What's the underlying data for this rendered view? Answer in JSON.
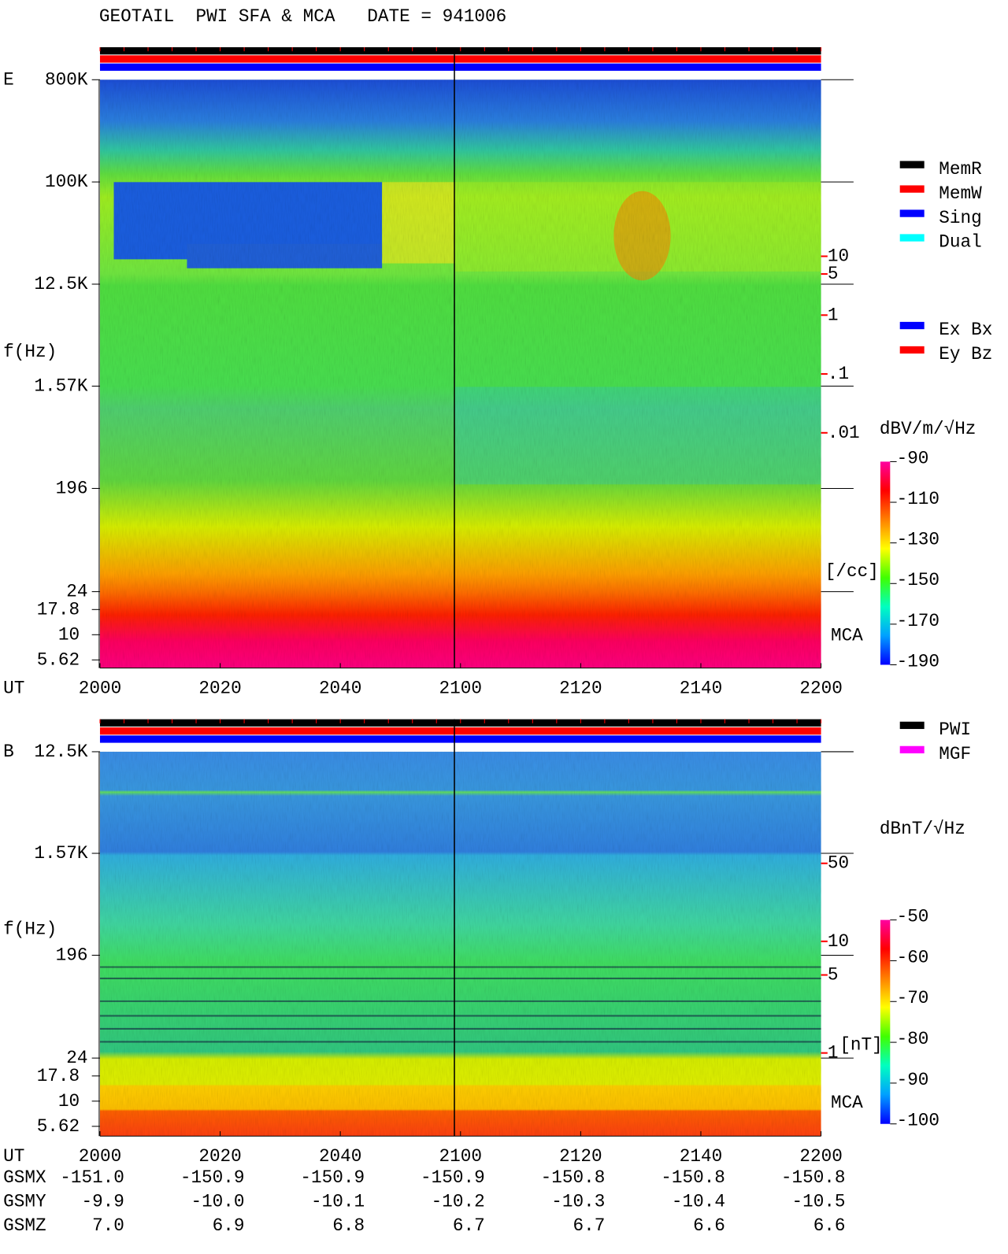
{
  "title": "GEOTAIL  PWI SFA & MCA   DATE = 941006",
  "chart_data": [
    {
      "type": "spectrogram",
      "panel_label": "E",
      "y_label": "f(Hz)",
      "x_label": "UT",
      "log_y": true,
      "x_categories": [
        "2000",
        "2020",
        "2040",
        "2100",
        "2120",
        "2140",
        "2200"
      ],
      "ylim": [
        24,
        800000
      ],
      "yticks": [
        {
          "value": 800000,
          "label": "800K"
        },
        {
          "value": 100000,
          "label": "100K"
        },
        {
          "value": 12500,
          "label": "12.5K"
        },
        {
          "value": 1570,
          "label": "1.57K"
        },
        196,
        24
      ],
      "mca_label": "MCA",
      "mca_ticks": [
        17.8,
        10,
        5.62
      ],
      "y2_label": "[/cc]",
      "y2lim": [
        2e-05,
        10000
      ],
      "y2ticks": [
        10,
        5,
        1,
        {
          "value": 0.1,
          "label": ".1"
        },
        {
          "value": 0.01,
          "label": ".01"
        }
      ],
      "colorbar": {
        "label": "dBV/m/√Hz",
        "clim": [
          -190,
          -90
        ],
        "ticks": [
          -90,
          -110,
          -130,
          -150,
          -170,
          -190
        ]
      },
      "legends": [
        {
          "entries": [
            {
              "name": "MemR",
              "color": "#000000"
            },
            {
              "name": "MemW",
              "color": "#ff0000"
            },
            {
              "name": "Sing",
              "color": "#0000ff"
            },
            {
              "name": "Dual",
              "color": "#00ffff"
            }
          ]
        },
        {
          "entries": [
            {
              "name": "Ex Bx",
              "color": "#0000ff"
            },
            {
              "name": "Ey Bz",
              "color": "#ff0000"
            }
          ]
        }
      ]
    },
    {
      "type": "spectrogram",
      "panel_label": "B",
      "y_label": "f(Hz)",
      "x_label": "UT",
      "log_y": true,
      "x_categories": [
        "2000",
        "2020",
        "2040",
        "2100",
        "2120",
        "2140",
        "2200"
      ],
      "ylim": [
        24,
        12500
      ],
      "yticks": [
        {
          "value": 12500,
          "label": "12.5K"
        },
        {
          "value": 1570,
          "label": "1.57K"
        },
        196,
        24
      ],
      "mca_label": "MCA",
      "mca_ticks": [
        17.8,
        10,
        5.62
      ],
      "y2_label": "[nT]",
      "y2lim": [
        0.9,
        500
      ],
      "y2ticks": [
        50,
        10,
        5,
        1
      ],
      "colorbar": {
        "label": "dBnT/√Hz",
        "clim": [
          -100,
          -50
        ],
        "ticks": [
          -50,
          -60,
          -70,
          -80,
          -90,
          -100
        ]
      },
      "legends": [
        {
          "entries": [
            {
              "name": "PWI",
              "color": "#000000"
            },
            {
              "name": "MGF",
              "color": "#ff00ff"
            }
          ]
        }
      ]
    }
  ],
  "orbit": {
    "labels": [
      "GSMX",
      "GSMY",
      "GSMZ"
    ],
    "rows": [
      [
        "-151.0",
        "-150.9",
        "-150.9",
        "-150.9",
        "-150.8",
        "-150.8",
        "-150.8"
      ],
      [
        "-9.9",
        "-10.0",
        "-10.1",
        "-10.2",
        "-10.3",
        "-10.4",
        "-10.5"
      ],
      [
        "7.0",
        "6.9",
        "6.8",
        "6.7",
        "6.7",
        "6.6",
        "6.6"
      ]
    ]
  }
}
